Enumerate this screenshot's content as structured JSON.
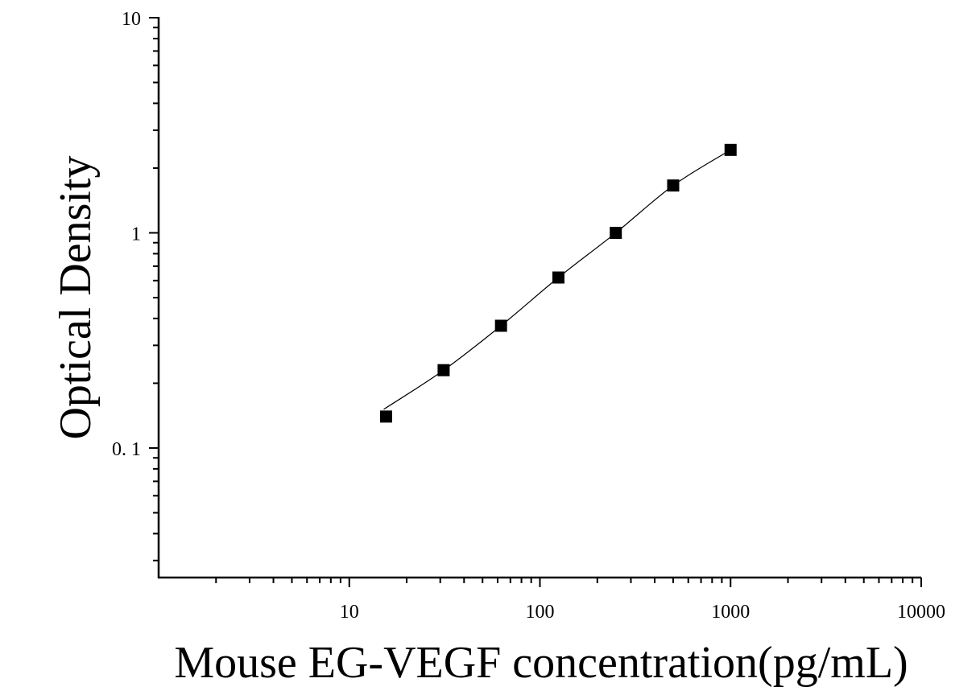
{
  "chart_data": {
    "type": "scatter",
    "xlabel": "Mouse EG-VEGF concentration(pg/mL)",
    "ylabel": "Optical Density",
    "x_scale": "log",
    "y_scale": "log",
    "xlim": [
      1,
      10000
    ],
    "ylim": [
      0.025,
      10
    ],
    "x_ticks": [
      {
        "value": 10,
        "label": "10"
      },
      {
        "value": 100,
        "label": "100"
      },
      {
        "value": 1000,
        "label": "1000"
      },
      {
        "value": 10000,
        "label": "10000"
      }
    ],
    "y_ticks": [
      {
        "value": 0.1,
        "label": "0. 1"
      },
      {
        "value": 1,
        "label": "1"
      },
      {
        "value": 10,
        "label": "10"
      }
    ],
    "grid": false,
    "legend": "none",
    "marker": "square",
    "color": "#000000",
    "series": [
      {
        "points": [
          {
            "x": 15.6,
            "y": 0.14
          },
          {
            "x": 31.25,
            "y": 0.23
          },
          {
            "x": 62.5,
            "y": 0.37
          },
          {
            "x": 125,
            "y": 0.62
          },
          {
            "x": 250,
            "y": 1.0
          },
          {
            "x": 500,
            "y": 1.66
          },
          {
            "x": 1000,
            "y": 2.43
          }
        ],
        "fit_curve": true
      }
    ]
  }
}
